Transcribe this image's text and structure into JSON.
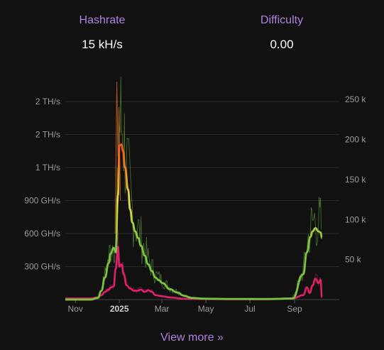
{
  "stats": {
    "hashrate": {
      "label": "Hashrate",
      "value": "15 kH/s"
    },
    "difficulty": {
      "label": "Difficulty",
      "value": "0.00"
    }
  },
  "view_more": "View more »",
  "colors": {
    "label": "#b080e0",
    "background": "#111111",
    "difficulty_line": "#7cc242",
    "hashrate_gradient_low": "#7cc242",
    "hashrate_gradient_mid": "#e8e040",
    "hashrate_gradient_high": "#f07020",
    "hashrate_gradient_top": "#e01030",
    "pink_line": "#e0206a"
  },
  "chart_data": {
    "type": "line",
    "title": "",
    "xlabel": "",
    "ylabel": "",
    "x_ticks": [
      {
        "label": "Nov",
        "bold": false
      },
      {
        "label": "2025",
        "bold": true
      },
      {
        "label": "Mar",
        "bold": false
      },
      {
        "label": "May",
        "bold": false
      },
      {
        "label": "Jul",
        "bold": false
      },
      {
        "label": "Sep",
        "bold": false
      }
    ],
    "y_left_ticks": [
      "300 GH/s",
      "600 GH/s",
      "900 GH/s",
      "1 TH/s",
      "2 TH/s",
      "2 TH/s"
    ],
    "y_left_values_ghs": [
      300,
      600,
      900,
      1200,
      1500,
      1800
    ],
    "y_left_range_ghs": [
      0,
      2000
    ],
    "y_right_ticks": [
      "50 k",
      "100 k",
      "150 k",
      "200 k",
      "250 k"
    ],
    "y_right_values": [
      50000,
      100000,
      150000,
      200000,
      250000
    ],
    "y_right_range": [
      0,
      275000
    ],
    "x_range_days": [
      -75,
      305
    ],
    "grid": true,
    "series": [
      {
        "axis": "left",
        "x_days": [
          -75,
          -40,
          -30,
          -25,
          -20,
          -15,
          -12,
          -8,
          -5,
          -2,
          0,
          3,
          5,
          8,
          12,
          15,
          18,
          22,
          26,
          30,
          35,
          40,
          45,
          50,
          55,
          60,
          70,
          80,
          90,
          100,
          120,
          150,
          180,
          210,
          240,
          255,
          260,
          265,
          268,
          272,
          276,
          279,
          281
        ],
        "values": [
          0,
          0,
          15,
          80,
          200,
          330,
          420,
          470,
          430,
          950,
          1400,
          1410,
          1350,
          1200,
          1000,
          820,
          700,
          620,
          560,
          490,
          400,
          320,
          260,
          200,
          175,
          150,
          95,
          65,
          35,
          15,
          8,
          6,
          5,
          5,
          10,
          230,
          430,
          570,
          620,
          650,
          620,
          610,
          560
        ]
      },
      {
        "axis": "left",
        "x_days": [
          -75,
          -40,
          -30,
          -25,
          -20,
          -15,
          -12,
          -8,
          -5,
          -2,
          0,
          3,
          6,
          10,
          15,
          20,
          25,
          30,
          35,
          40,
          45,
          50,
          60,
          70,
          90,
          120,
          160,
          200,
          240,
          255,
          260,
          264,
          268,
          272,
          276,
          279,
          281
        ],
        "values": [
          10,
          10,
          20,
          40,
          70,
          90,
          110,
          120,
          280,
          480,
          300,
          320,
          230,
          130,
          100,
          80,
          80,
          90,
          70,
          85,
          70,
          40,
          30,
          20,
          8,
          5,
          3,
          3,
          10,
          40,
          110,
          60,
          130,
          190,
          150,
          180,
          20
        ]
      }
    ]
  }
}
